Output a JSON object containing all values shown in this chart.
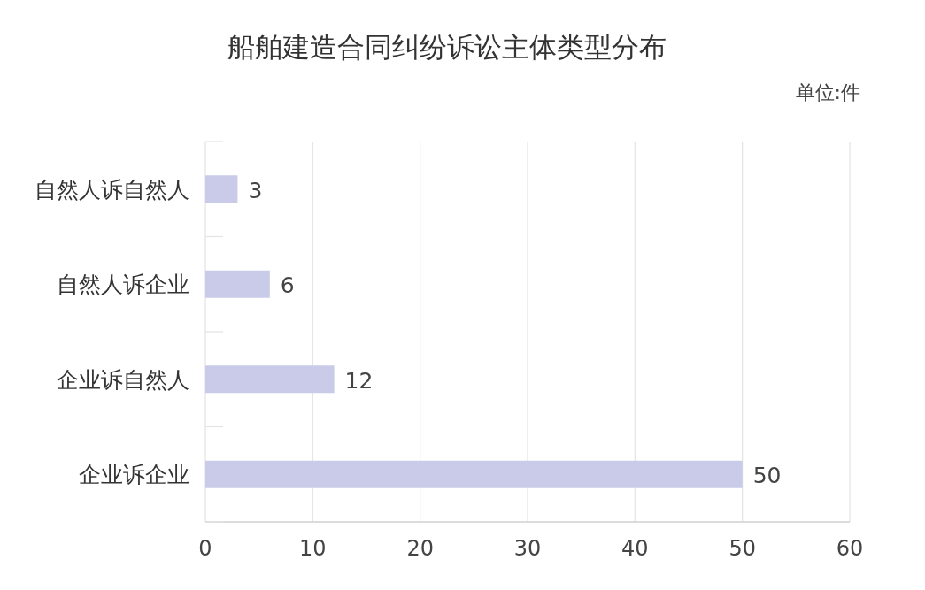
{
  "chart_data": {
    "type": "bar",
    "orientation": "horizontal",
    "title": "船舶建造合同纠纷诉讼主体类型分布",
    "annotations": [
      "单位:件"
    ],
    "categories": [
      "自然人诉自然人",
      "自然人诉企业",
      "企业诉自然人",
      "企业诉企业"
    ],
    "values": [
      3,
      6,
      12,
      50
    ],
    "color": "#c9cbe8",
    "xlim": [
      0,
      60
    ],
    "xticks": [
      0,
      10,
      20,
      30,
      40,
      50,
      60
    ],
    "grid": "x",
    "data_labels": true
  }
}
